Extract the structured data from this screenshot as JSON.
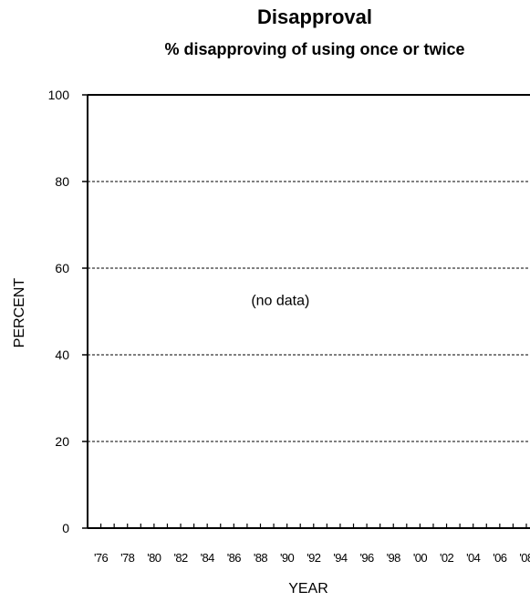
{
  "chart_data": {
    "type": "line",
    "title": "Disapproval",
    "subtitle": "% disapproving of using once or twice",
    "xlabel": "YEAR",
    "ylabel": "PERCENT",
    "ylim": [
      0,
      100
    ],
    "yticks": [
      0,
      20,
      40,
      60,
      80,
      100
    ],
    "xlim": [
      1975,
      2008
    ],
    "xticks": [
      1976,
      1978,
      1980,
      1982,
      1984,
      1986,
      1988,
      1990,
      1992,
      1994,
      1996,
      1998,
      2000,
      2002,
      2004,
      2006,
      2008
    ],
    "xtick_labels": [
      "'76",
      "'78",
      "'80",
      "'82",
      "'84",
      "'86",
      "'88",
      "'90",
      "'92",
      "'94",
      "'96",
      "'98",
      "'00",
      "'02",
      "'04",
      "'06",
      "'08"
    ],
    "grid": "horizontal dashed",
    "series": [],
    "annotation": "(no data)"
  }
}
